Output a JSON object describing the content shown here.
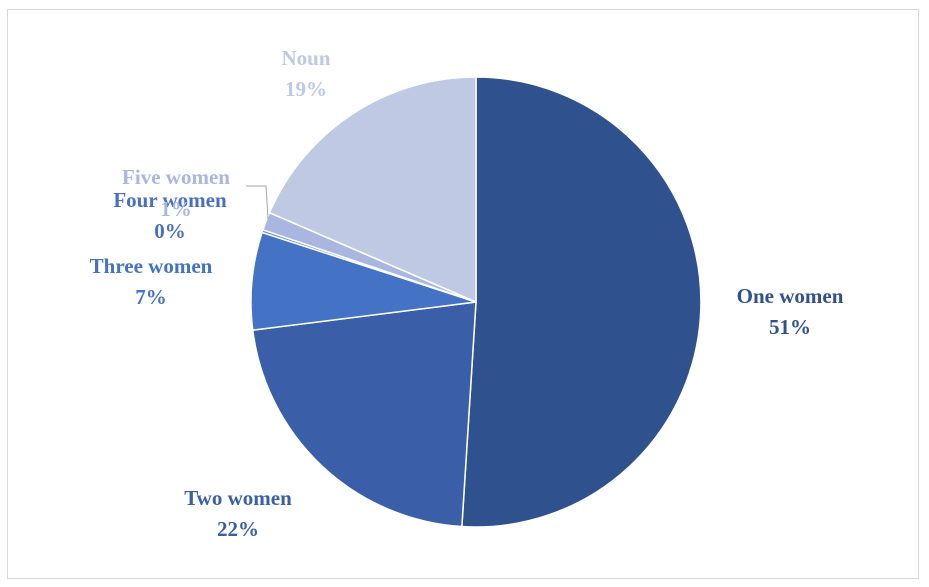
{
  "chart_data": {
    "type": "pie",
    "slices": [
      {
        "label": "One women",
        "percent_label": "51%",
        "value": 51.0,
        "color": "#2f528f",
        "label_color": "#2f528f"
      },
      {
        "label": "Two women",
        "percent_label": "22%",
        "value": 22.0,
        "color": "#3a5ea8",
        "label_color": "#3a5ea8"
      },
      {
        "label": "Three women",
        "percent_label": "7%",
        "value": 7.0,
        "color": "#4472c4",
        "label_color": "#4472c4"
      },
      {
        "label": "Four women",
        "percent_label": "0%",
        "value": 0.2,
        "color": "#6f8fd1",
        "label_color": "#4a6fc0"
      },
      {
        "label": "Five women",
        "percent_label": "1%",
        "value": 1.3,
        "color": "#a9b7e0",
        "label_color": "#a9b7e0"
      },
      {
        "label": "Noun",
        "percent_label": "19%",
        "value": 18.5,
        "color": "#bfc9e4",
        "label_color": "#bfc9e4"
      }
    ],
    "start_angle_deg": 0,
    "direction": "clockwise",
    "legend": "none",
    "title": ""
  }
}
